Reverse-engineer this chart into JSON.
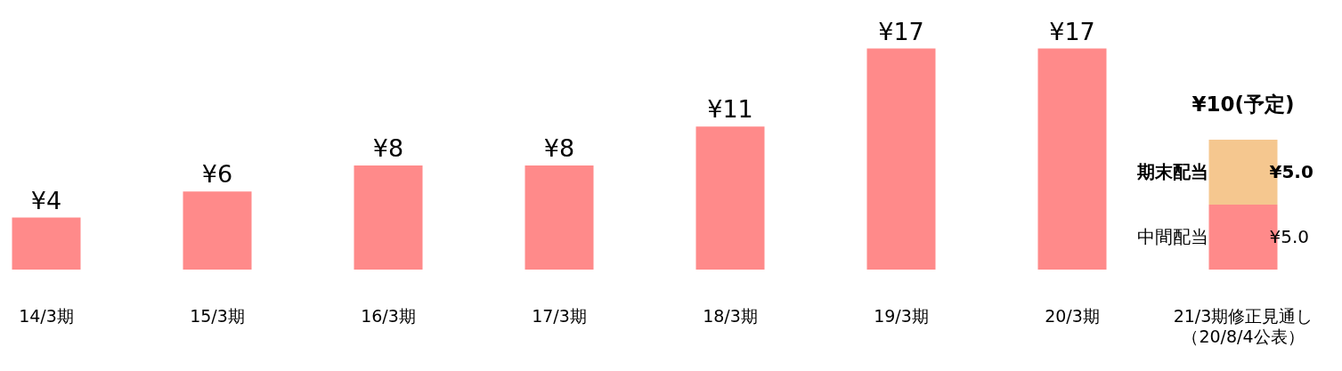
{
  "chart_data": {
    "type": "bar",
    "stacked": true,
    "categories": [
      "14/3期",
      "15/3期",
      "16/3期",
      "17/3期",
      "18/3期",
      "19/3期",
      "20/3期",
      "21/3期修正見通し（20/8/4公表）"
    ],
    "series": [
      {
        "name": "中間配当",
        "color": "#ff8a8a",
        "values": [
          4,
          6,
          8,
          8,
          11,
          17,
          17,
          5
        ],
        "value_labels": [
          "¥4",
          "¥6",
          "¥8",
          "¥8",
          "¥11",
          "¥17",
          "¥17",
          "¥5.0"
        ]
      },
      {
        "name": "期末配当",
        "color": "#f5c78f",
        "values": [
          null,
          null,
          null,
          null,
          null,
          null,
          null,
          5
        ],
        "value_labels": [
          null,
          null,
          null,
          null,
          null,
          null,
          null,
          "¥5.0"
        ]
      }
    ],
    "totals": [
      null,
      null,
      null,
      null,
      null,
      null,
      null,
      "¥10(予定)"
    ],
    "grid": false,
    "legend": false
  }
}
